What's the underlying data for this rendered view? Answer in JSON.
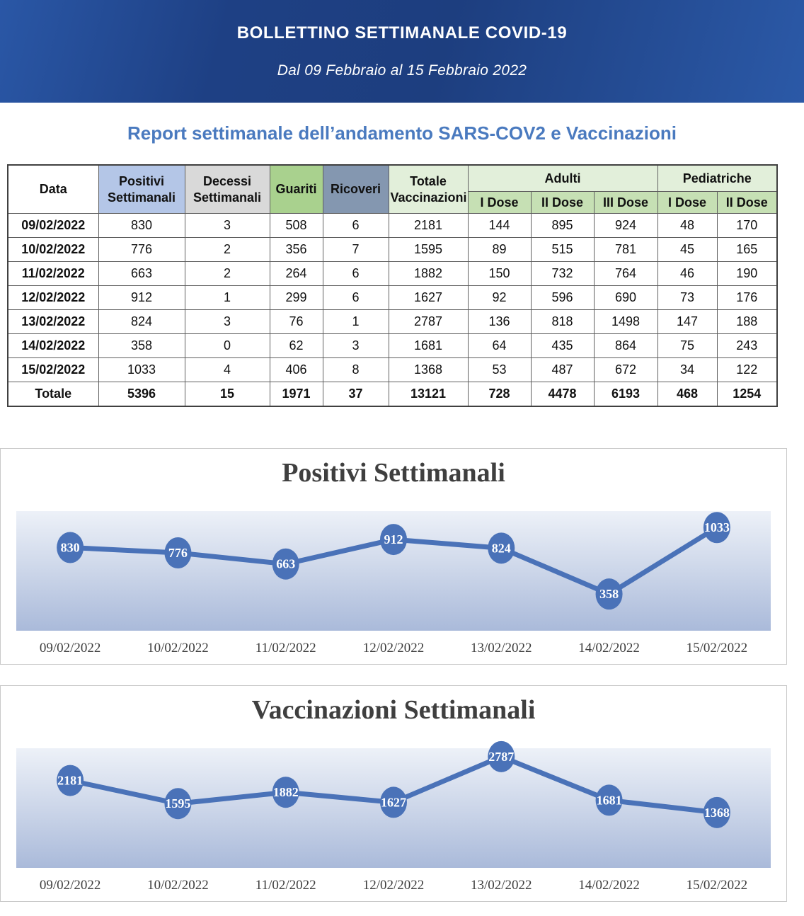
{
  "banner": {
    "title": "BOLLETTINO SETTIMANALE COVID-19",
    "subtitle": "Dal 09 Febbraio al 15 Febbraio 2022"
  },
  "report_heading": {
    "part1": "Report settimanale dell’andamento",
    "part2": "SARS-COV2",
    "part3": "e",
    "part4": "Vaccinazioni",
    "color": "#4a7abf"
  },
  "table": {
    "header": {
      "data": "Data",
      "positivi": "Positivi Settimanali",
      "decessi": "Decessi Settimanali",
      "guariti": "Guariti",
      "ricoveri": "Ricoveri",
      "totale_vaccinazioni": "Totale Vaccinazioni",
      "adulti": "Adulti",
      "pediatriche": "Pediatriche",
      "adulti_dose1": "I Dose",
      "adulti_dose2": "II Dose",
      "adulti_dose3": "III Dose",
      "ped_dose1": "I Dose",
      "ped_dose2": "II Dose"
    },
    "colors": {
      "positivi_bg": "#b4c6e7",
      "decessi_bg": "#d9d9d9",
      "guariti_bg": "#a9d18e",
      "ricoveri_bg": "#8497b0",
      "totale_vaccinazioni_bg": "#e2efda",
      "group_bg": "#e2efda",
      "dose_bg": "#c6e0b4"
    },
    "rows": [
      {
        "date": "09/02/2022",
        "cells": [
          "830",
          "3",
          "508",
          "6",
          "2181",
          "144",
          "895",
          "924",
          "48",
          "170"
        ]
      },
      {
        "date": "10/02/2022",
        "cells": [
          "776",
          "2",
          "356",
          "7",
          "1595",
          "89",
          "515",
          "781",
          "45",
          "165"
        ]
      },
      {
        "date": "11/02/2022",
        "cells": [
          "663",
          "2",
          "264",
          "6",
          "1882",
          "150",
          "732",
          "764",
          "46",
          "190"
        ]
      },
      {
        "date": "12/02/2022",
        "cells": [
          "912",
          "1",
          "299",
          "6",
          "1627",
          "92",
          "596",
          "690",
          "73",
          "176"
        ]
      },
      {
        "date": "13/02/2022",
        "cells": [
          "824",
          "3",
          "76",
          "1",
          "2787",
          "136",
          "818",
          "1498",
          "147",
          "188"
        ]
      },
      {
        "date": "14/02/2022",
        "cells": [
          "358",
          "0",
          "62",
          "3",
          "1681",
          "64",
          "435",
          "864",
          "75",
          "243"
        ]
      },
      {
        "date": "15/02/2022",
        "cells": [
          "1033",
          "4",
          "406",
          "8",
          "1368",
          "53",
          "487",
          "672",
          "34",
          "122"
        ]
      }
    ],
    "total_row": {
      "label": "Totale",
      "cells": [
        "5396",
        "15",
        "1971",
        "37",
        "13121",
        "728",
        "4478",
        "6193",
        "468",
        "1254"
      ]
    }
  },
  "chart_data": [
    {
      "type": "line",
      "title": "Positivi Settimanali",
      "categories": [
        "09/02/2022",
        "10/02/2022",
        "11/02/2022",
        "12/02/2022",
        "13/02/2022",
        "14/02/2022",
        "15/02/2022"
      ],
      "values": [
        830,
        776,
        663,
        912,
        824,
        358,
        1033
      ],
      "xlabel": "",
      "ylabel": "",
      "ylim": [
        0,
        1200
      ],
      "grid": false,
      "legend_position": "none",
      "line_color": "#4a72b8",
      "marker_label_color": "#ffffff",
      "axis_label_color": "#3d3d3d",
      "plot_bg_gradient": [
        "#edf1f8",
        "#ccd6e9",
        "#aabada"
      ]
    },
    {
      "type": "line",
      "title": "Vaccinazioni Settimanali",
      "categories": [
        "09/02/2022",
        "10/02/2022",
        "11/02/2022",
        "12/02/2022",
        "13/02/2022",
        "14/02/2022",
        "15/02/2022"
      ],
      "values": [
        2181,
        1595,
        1882,
        1627,
        2787,
        1681,
        1368
      ],
      "xlabel": "",
      "ylabel": "",
      "ylim": [
        0,
        3000
      ],
      "grid": false,
      "legend_position": "none",
      "line_color": "#4a72b8",
      "marker_label_color": "#ffffff",
      "axis_label_color": "#3d3d3d",
      "plot_bg_gradient": [
        "#edf1f8",
        "#ccd6e9",
        "#aabada"
      ]
    }
  ]
}
